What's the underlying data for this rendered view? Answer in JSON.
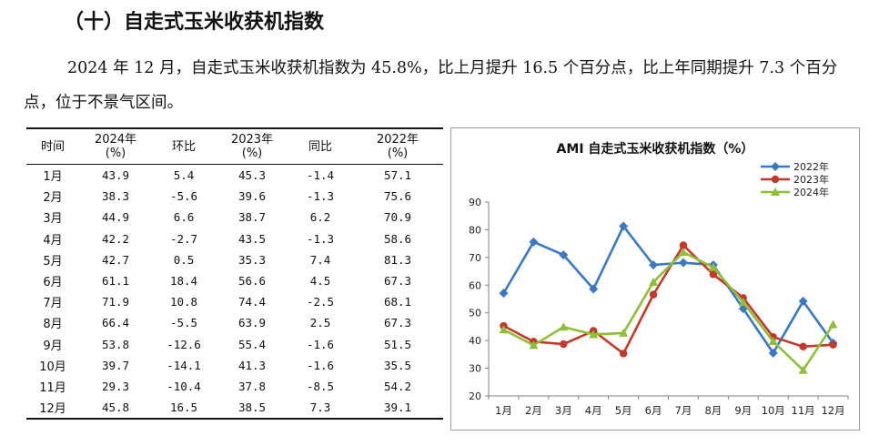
{
  "heading": "（十）自走式玉米收获机指数",
  "paragraph": "2024 年 12 月，自走式玉米收获机指数为 45.8%，比上月提升 16.5 个百分点，比上年同期提升 7.3 个百分点，位于不景气区间。",
  "table": {
    "headers": [
      "时间",
      "2024年\n(%)",
      "环比",
      "2023年\n(%)",
      "同比",
      "2022年\n(%)"
    ],
    "rows": [
      [
        "1月",
        "43.9",
        "5.4",
        "45.3",
        "-1.4",
        "57.1"
      ],
      [
        "2月",
        "38.3",
        "-5.6",
        "39.6",
        "-1.3",
        "75.6"
      ],
      [
        "3月",
        "44.9",
        "6.6",
        "38.7",
        "6.2",
        "70.9"
      ],
      [
        "4月",
        "42.2",
        "-2.7",
        "43.5",
        "-1.3",
        "58.6"
      ],
      [
        "5月",
        "42.7",
        "0.5",
        "35.3",
        "7.4",
        "81.3"
      ],
      [
        "6月",
        "61.1",
        "18.4",
        "56.6",
        "4.5",
        "67.3"
      ],
      [
        "7月",
        "71.9",
        "10.8",
        "74.4",
        "-2.5",
        "68.1"
      ],
      [
        "8月",
        "66.4",
        "-5.5",
        "63.9",
        "2.5",
        "67.3"
      ],
      [
        "9月",
        "53.8",
        "-12.6",
        "55.4",
        "-1.6",
        "51.5"
      ],
      [
        "10月",
        "39.7",
        "-14.1",
        "41.3",
        "-1.6",
        "35.5"
      ],
      [
        "11月",
        "29.3",
        "-10.4",
        "37.8",
        "-8.5",
        "54.2"
      ],
      [
        "12月",
        "45.8",
        "16.5",
        "38.5",
        "7.3",
        "39.1"
      ]
    ]
  },
  "chart_data": {
    "type": "line",
    "title": "AMI 自走式玉米收获机指数（%）",
    "categories": [
      "1月",
      "2月",
      "3月",
      "4月",
      "5月",
      "6月",
      "7月",
      "8月",
      "9月",
      "10月",
      "11月",
      "12月"
    ],
    "ylim": [
      20,
      90
    ],
    "yticks": [
      20,
      30,
      40,
      50,
      60,
      70,
      80,
      90
    ],
    "grid": false,
    "legend": "top-right",
    "series": [
      {
        "name": "2022年",
        "color": "#3b78c2",
        "marker": "diamond",
        "values": [
          57.1,
          75.6,
          70.9,
          58.6,
          81.3,
          67.3,
          68.1,
          67.3,
          51.5,
          35.5,
          54.2,
          39.1
        ]
      },
      {
        "name": "2023年",
        "color": "#c0392b",
        "marker": "circle",
        "values": [
          45.3,
          39.6,
          38.7,
          43.5,
          35.3,
          56.6,
          74.4,
          63.9,
          55.4,
          41.3,
          37.8,
          38.5
        ]
      },
      {
        "name": "2024年",
        "color": "#8fbf3a",
        "marker": "triangle",
        "values": [
          43.9,
          38.3,
          44.9,
          42.2,
          42.7,
          61.1,
          71.9,
          66.4,
          53.8,
          39.7,
          29.3,
          45.8
        ]
      }
    ]
  }
}
